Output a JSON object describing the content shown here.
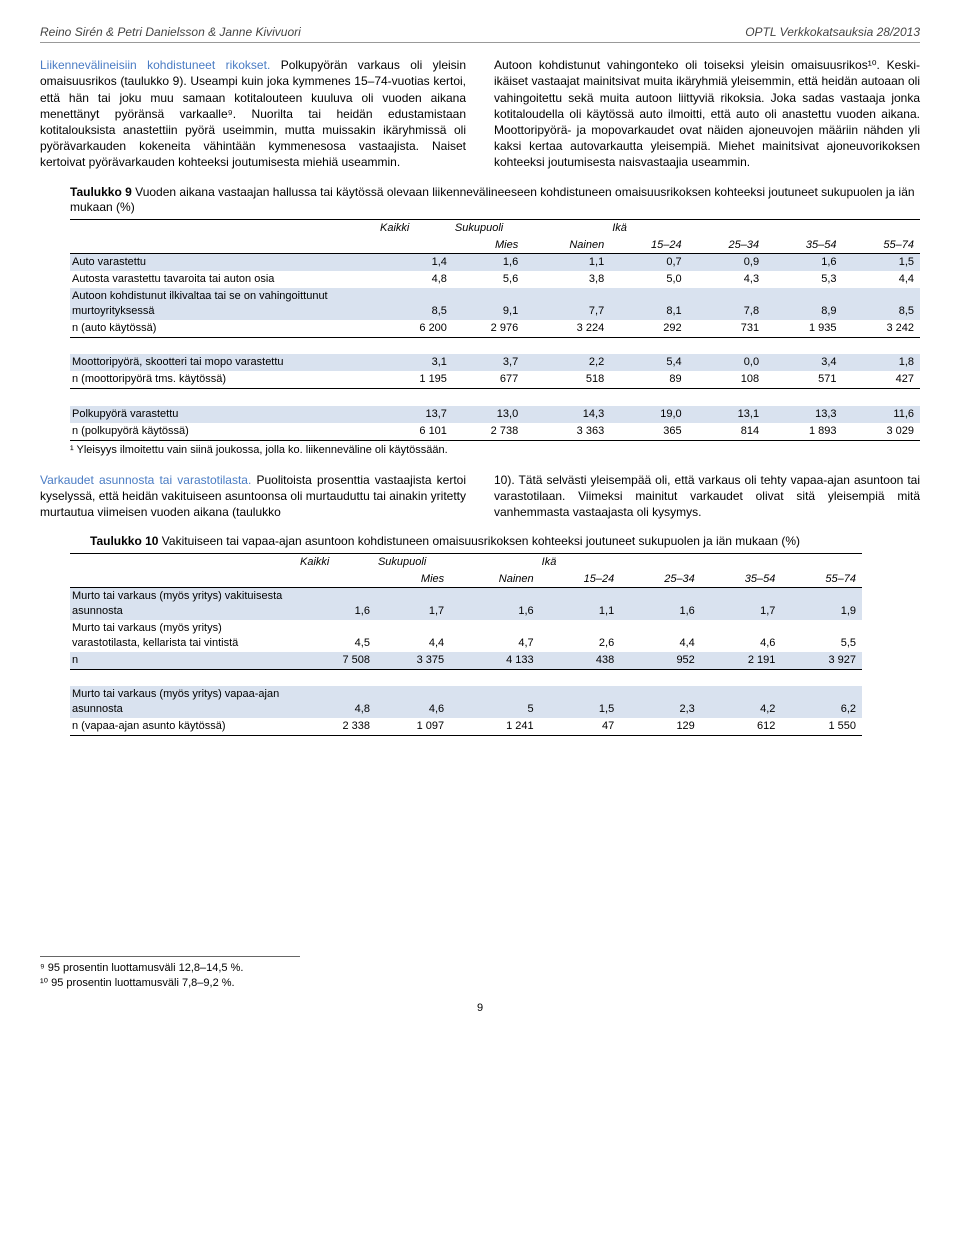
{
  "header": {
    "left": "Reino Sirén & Petri Danielsson & Janne Kivivuori",
    "right": "OPTL Verkkokatsauksia 28/2013"
  },
  "para1_head": "Liikennevälineisiin kohdistuneet rikokset.",
  "para1_left": " Polkupyörän varkaus oli yleisin omaisuusrikos (taulukko 9). Useampi kuin joka kymmenes 15–74-vuotias kertoi, että hän tai joku muu samaan kotitalouteen kuuluva oli vuoden aikana menettänyt pyöränsä varkaalle⁹. Nuorilta tai heidän edustamistaan kotitalouksista anastettiin pyörä useimmin, mutta muissakin ikäryhmissä oli pyörävarkauden kokeneita vähintään kymmenesosa vastaajista. Naiset kertoivat pyörävarkauden kohteeksi joutumisesta miehiä useammin.",
  "para1_right": "Autoon kohdistunut vahingonteko oli toiseksi yleisin omaisuusrikos¹⁰. Keski-ikäiset vastaajat mainitsivat muita ikäryhmiä yleisemmin, että heidän autoaan oli vahingoitettu sekä muita autoon liittyviä rikoksia. Joka sadas vastaaja jonka kotitaloudella oli käytössä auto ilmoitti, että auto oli anastettu vuoden aikana. Moottoripyörä- ja mopovarkaudet ovat näiden ajoneuvojen määriin nähden yli kaksi kertaa autovarkautta yleisempiä. Miehet mainitsivat ajoneuvorikoksen kohteeksi joutumisesta naisvastaajia useammin.",
  "t9": {
    "caption_b": "Taulukko 9",
    "caption": " Vuoden aikana vastaajan hallussa tai käytössä olevaan liikennevälineeseen kohdistuneen omaisuusrikoksen kohteeksi joutuneet sukupuolen ja iän mukaan (%)",
    "cols": {
      "kaikki": "Kaikki",
      "sukupuoli": "Sukupuoli",
      "ika": "Ikä",
      "mies": "Mies",
      "nainen": "Nainen",
      "a15": "15–24",
      "a25": "25–34",
      "a35": "35–54",
      "a55": "55–74"
    },
    "rows": [
      {
        "label": "Auto varastettu",
        "v": [
          "1,4",
          "1,6",
          "1,1",
          "0,7",
          "0,9",
          "1,6",
          "1,5"
        ],
        "shade": true
      },
      {
        "label": "Autosta varastettu tavaroita tai auton osia",
        "v": [
          "4,8",
          "5,6",
          "3,8",
          "5,0",
          "4,3",
          "5,3",
          "4,4"
        ]
      },
      {
        "label": "Autoon kohdistunut ilkivaltaa tai se on vahingoittunut murtoyrityksessä",
        "v": [
          "8,5",
          "9,1",
          "7,7",
          "8,1",
          "7,8",
          "8,9",
          "8,5"
        ],
        "shade": true
      },
      {
        "label": "n (auto käytössä)",
        "v": [
          "6 200",
          "2 976",
          "3 224",
          "292",
          "731",
          "1 935",
          "3 242"
        ],
        "bb": true
      },
      {
        "label": " ",
        "v": [
          "",
          "",
          "",
          "",
          "",
          "",
          ""
        ]
      },
      {
        "label": "Moottoripyörä, skootteri tai mopo varastettu",
        "v": [
          "3,1",
          "3,7",
          "2,2",
          "5,4",
          "0,0",
          "3,4",
          "1,8"
        ],
        "shade": true
      },
      {
        "label": "n (moottoripyörä tms. käytössä)",
        "v": [
          "1 195",
          "677",
          "518",
          "89",
          "108",
          "571",
          "427"
        ],
        "bb": true
      },
      {
        "label": " ",
        "v": [
          "",
          "",
          "",
          "",
          "",
          "",
          ""
        ]
      },
      {
        "label": "Polkupyörä varastettu",
        "v": [
          "13,7",
          "13,0",
          "14,3",
          "19,0",
          "13,1",
          "13,3",
          "11,6"
        ],
        "shade": true
      },
      {
        "label": "n (polkupyörä käytössä)",
        "v": [
          "6 101",
          "2 738",
          "3 363",
          "365",
          "814",
          "1 893",
          "3 029"
        ],
        "bb": true
      }
    ],
    "footnote": "¹ Yleisyys ilmoitettu vain siinä joukossa, jolla ko. liikenneväline oli käytössään."
  },
  "para2_head": "Varkaudet asunnosta tai varastotilasta.",
  "para2_left": " Puolitoista prosenttia vastaajista kertoi kyselyssä, että heidän vakituiseen asuntoonsa oli murtauduttu tai ainakin yritetty murtautua viimeisen vuoden aikana (taulukko ",
  "para2_right": "10). Tätä selvästi yleisempää oli, että varkaus oli tehty vapaa-ajan asuntoon tai varastotilaan. Viimeksi mainitut varkaudet olivat sitä yleisempiä mitä vanhemmasta vastaajasta oli kysymys.",
  "t10": {
    "caption_b": "Taulukko 10",
    "caption": " Vakituiseen tai vapaa-ajan asuntoon kohdistuneen omaisuusrikoksen kohteeksi joutuneet sukupuolen ja iän mukaan (%)",
    "cols": {
      "kaikki": "Kaikki",
      "sukupuoli": "Sukupuoli",
      "ika": "Ikä",
      "mies": "Mies",
      "nainen": "Nainen",
      "a15": "15–24",
      "a25": "25–34",
      "a35": "35–54",
      "a55": "55–74"
    },
    "rows": [
      {
        "label": "Murto tai varkaus (myös yritys) vakituisesta asunnosta",
        "v": [
          "1,6",
          "1,7",
          "1,6",
          "1,1",
          "1,6",
          "1,7",
          "1,9"
        ],
        "shade": true
      },
      {
        "label": "Murto tai varkaus (myös yritys) varastotilasta, kellarista tai vintistä",
        "v": [
          "4,5",
          "4,4",
          "4,7",
          "2,6",
          "4,4",
          "4,6",
          "5,5"
        ]
      },
      {
        "label": "n",
        "v": [
          "7 508",
          "3 375",
          "4 133",
          "438",
          "952",
          "2 191",
          "3 927"
        ],
        "shade": true,
        "bb": true
      },
      {
        "label": " ",
        "v": [
          "",
          "",
          "",
          "",
          "",
          "",
          ""
        ]
      },
      {
        "label": "Murto tai varkaus (myös yritys) vapaa-ajan asunnosta",
        "v": [
          "4,8",
          "4,6",
          "5",
          "1,5",
          "2,3",
          "4,2",
          "6,2"
        ],
        "shade": true
      },
      {
        "label": "n (vapaa-ajan asunto käytössä)",
        "v": [
          "2 338",
          "1 097",
          "1 241",
          "47",
          "129",
          "612",
          "1 550"
        ],
        "bb": true
      }
    ]
  },
  "bottom_footnotes": [
    "⁹ 95 prosentin luottamusväli 12,8–14,5 %.",
    "¹⁰ 95 prosentin luottamusväli 7,8–9,2 %."
  ],
  "pagenum": "9"
}
